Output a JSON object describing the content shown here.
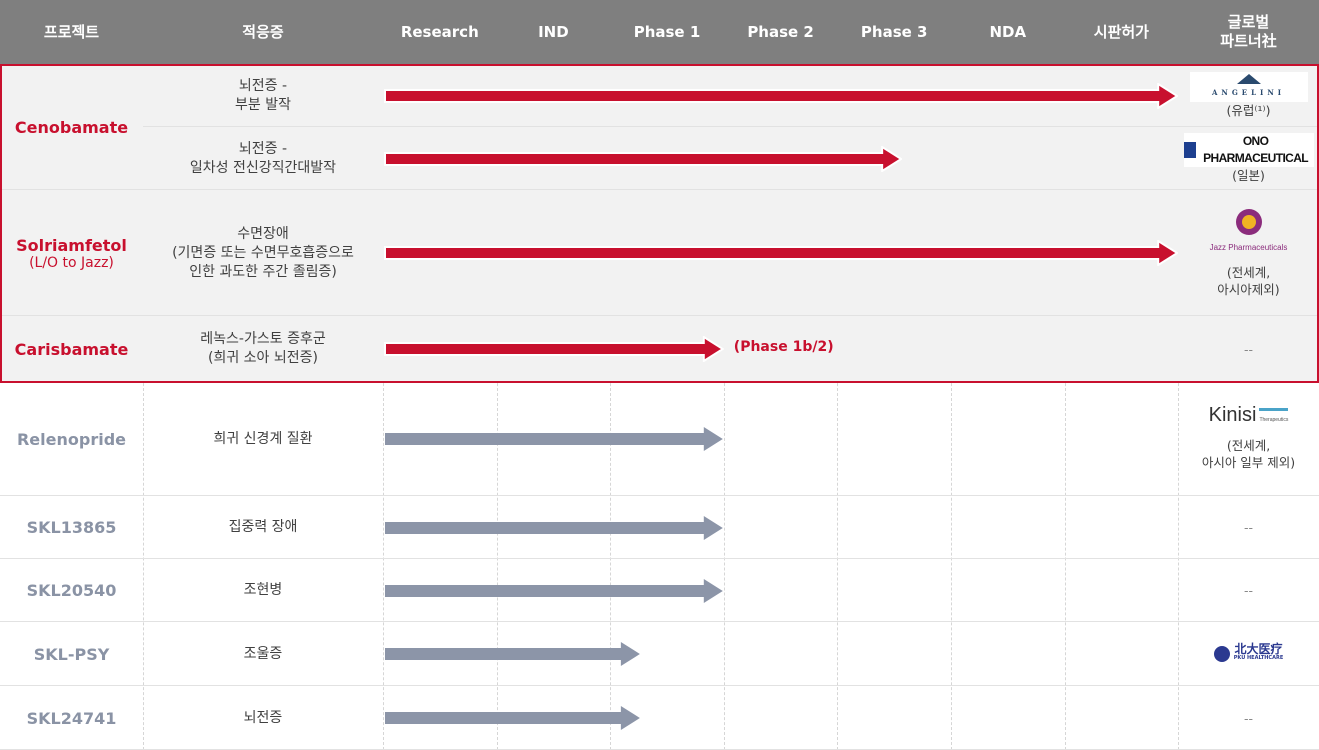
{
  "header": {
    "project": "프로젝트",
    "indication": "적응증",
    "stages": [
      "Research",
      "IND",
      "Phase 1",
      "Phase 2",
      "Phase 3",
      "NDA",
      "시판허가"
    ],
    "partner_line1": "글로벌",
    "partner_line2": "파트너社"
  },
  "colors": {
    "header_bg": "#7f7f7f",
    "highlight": "#c8102e",
    "gray_arrow": "#8c95a8",
    "highlight_bg": "#f2f2f2",
    "gray_text": "#8a93a5"
  },
  "projects": [
    {
      "name": "Cenobamate",
      "sub": "",
      "highlight": true,
      "rows": [
        {
          "indication": "뇌전증 -\n부분 발작",
          "arrow_end_stage": 7.0,
          "partner_logo": "ANGELINI",
          "partner_text": "(유럽⁽¹⁾)"
        },
        {
          "indication": "뇌전증 -\n일차성 전신강직간대발작",
          "arrow_end_stage": 4.57,
          "partner_logo": "ONO PHARMACEUTICAL",
          "partner_text": "(일본)"
        }
      ]
    },
    {
      "name": "Solriamfetol",
      "sub": "(L/O to Jazz)",
      "highlight": true,
      "rows": [
        {
          "indication": "수면장애\n(기면증 또는 수면무호흡증으로\n인한 과도한 주간 졸림증)",
          "arrow_end_stage": 7.0,
          "partner_logo": "Jazz Pharmaceuticals",
          "partner_text": "(전세계,\n아시아제외)"
        }
      ]
    },
    {
      "name": "Carisbamate",
      "sub": "",
      "highlight": true,
      "rows": [
        {
          "indication": "레녹스-가스토 증후군\n(희귀 소아 뇌전증)",
          "arrow_end_stage": 3.0,
          "note": "(Phase 1b/2)",
          "partner_logo": "",
          "partner_text": "--"
        }
      ]
    },
    {
      "name": "Relenopride",
      "sub": "",
      "highlight": false,
      "rows": [
        {
          "indication": "희귀 신경계 질환",
          "arrow_end_stage": 3.0,
          "partner_logo": "Kinisi Therapeutics",
          "partner_text": "(전세계,\n아시아 일부 제외)"
        }
      ]
    },
    {
      "name": "SKL13865",
      "sub": "",
      "highlight": false,
      "rows": [
        {
          "indication": "집중력 장애",
          "arrow_end_stage": 3.0,
          "partner_logo": "",
          "partner_text": "--"
        }
      ]
    },
    {
      "name": "SKL20540",
      "sub": "",
      "highlight": false,
      "rows": [
        {
          "indication": "조현병",
          "arrow_end_stage": 3.0,
          "partner_logo": "",
          "partner_text": "--"
        }
      ]
    },
    {
      "name": "SKL-PSY",
      "sub": "",
      "highlight": false,
      "rows": [
        {
          "indication": "조울증",
          "arrow_end_stage": 2.27,
          "partner_logo": "北大医疗 PKU HEALTHCARE",
          "partner_text": ""
        }
      ]
    },
    {
      "name": "SKL24741",
      "sub": "",
      "highlight": false,
      "rows": [
        {
          "indication": "뇌전증",
          "arrow_end_stage": 2.27,
          "partner_logo": "",
          "partner_text": "--"
        }
      ]
    }
  ]
}
